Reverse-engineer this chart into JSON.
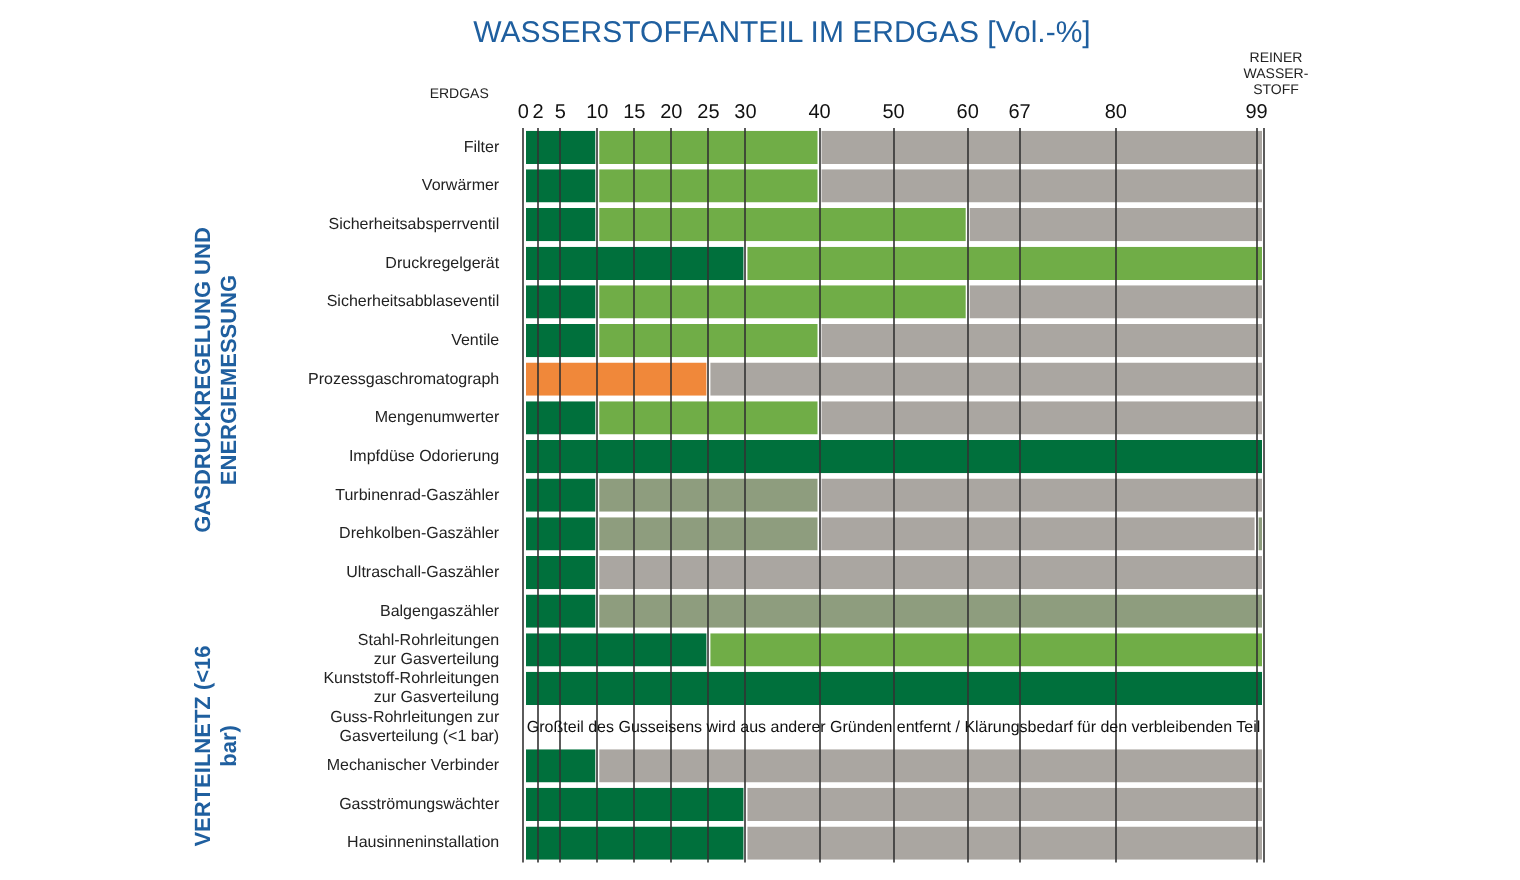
{
  "chart_data": {
    "type": "bar",
    "orientation": "horizontal",
    "stacked": true,
    "title": "WASSERSTOFFANTEIL IM ERDGAS [Vol.-%]",
    "categories": [
      "Filter",
      "Vorwärmer",
      "Sicherheitsabsperrventil",
      "Druckregelgerät",
      "Sicherheitsabblaseventil",
      "Ventile",
      "Prozessgaschromatograph",
      "Mengenumwerter",
      "Impfdüse Odorierung",
      "Turbinenrad-Gaszähler",
      "Drehkolben-Gaszähler",
      "Ultraschall-Gaszähler",
      "Balgengaszähler",
      "Stahl-Rohrleitungen\nzur Gasverteilung",
      "Kunststoff-Rohrleitungen\nzur Gasverteilung",
      "Guss-Rohrleitungen zur\nGasverteilung (<1 bar)",
      "Mechanischer Verbinder",
      "Gasströmungswächter",
      "Hausinneninstallation"
    ],
    "series": [
      {
        "values": [
          10,
          10,
          10,
          30,
          10,
          10,
          25,
          10,
          100,
          10,
          10,
          10,
          10,
          25,
          100,
          null,
          10,
          30,
          30
        ],
        "colors": [
          "#00703c",
          "#00703c",
          "#00703c",
          "#00703c",
          "#00703c",
          "#00703c",
          "#f0883a",
          "#00703c",
          "#00703c",
          "#00703c",
          "#00703c",
          "#00703c",
          "#00703c",
          "#00703c",
          "#00703c",
          "#ffffff",
          "#00703c",
          "#00703c",
          "#00703c"
        ]
      },
      {
        "values": [
          30,
          30,
          50,
          70,
          50,
          30,
          75,
          30,
          null,
          30,
          30,
          90,
          90,
          75,
          null,
          null,
          90,
          70,
          70
        ],
        "colors": [
          "#70ad47",
          "#70ad47",
          "#70ad47",
          "#70ad47",
          "#70ad47",
          "#70ad47",
          "#aaa6a1",
          "#70ad47",
          "#ffffff",
          "#8e9d7e",
          "#8e9d7e",
          "#aaa6a1",
          "#8e9d7e",
          "#70ad47",
          "#ffffff",
          "#ffffff",
          "#aaa6a1",
          "#aaa6a1",
          "#aaa6a1"
        ]
      },
      {
        "values": [
          60,
          60,
          40,
          null,
          40,
          60,
          null,
          60,
          null,
          60,
          59,
          null,
          null,
          null,
          null,
          null,
          null,
          null,
          null
        ],
        "colors": [
          "#aaa6a1",
          "#aaa6a1",
          "#aaa6a1",
          "#ffffff",
          "#aaa6a1",
          "#aaa6a1",
          "#ffffff",
          "#aaa6a1",
          "#ffffff",
          "#aaa6a1",
          "#aaa6a1",
          "#ffffff",
          "#ffffff",
          "#ffffff",
          "#ffffff",
          "#ffffff",
          "#ffffff",
          "#ffffff",
          "#ffffff"
        ]
      },
      {
        "values": [
          null,
          null,
          null,
          null,
          null,
          null,
          null,
          null,
          null,
          null,
          1,
          null,
          null,
          null,
          null,
          null,
          null,
          null,
          null
        ],
        "colors": [
          "#ffffff",
          "#ffffff",
          "#ffffff",
          "#ffffff",
          "#ffffff",
          "#ffffff",
          "#ffffff",
          "#ffffff",
          "#ffffff",
          "#ffffff",
          "#8e9d7e",
          "#ffffff",
          "#ffffff",
          "#ffffff",
          "#ffffff",
          "#ffffff",
          "#ffffff",
          "#ffffff",
          "#ffffff"
        ]
      }
    ],
    "xlim": [
      0,
      100
    ],
    "xticks": [
      0,
      2,
      5,
      10,
      15,
      20,
      25,
      30,
      40,
      50,
      60,
      67,
      80,
      99,
      {
        "value": 100,
        "label": null
      }
    ],
    "grid": "x",
    "legend": false,
    "annotations": [
      "ERDGAS",
      "REINER WASSER-STOFF",
      "GASDRUCKREGELUNG UND ENERGIEMESSUNG",
      "VERTEILNETZ (<16 bar)",
      "Großteil des Gusseisens wird aus anderer Gründen entfernt / Klärungsbedarf für den verbleibenden Teil"
    ]
  }
}
